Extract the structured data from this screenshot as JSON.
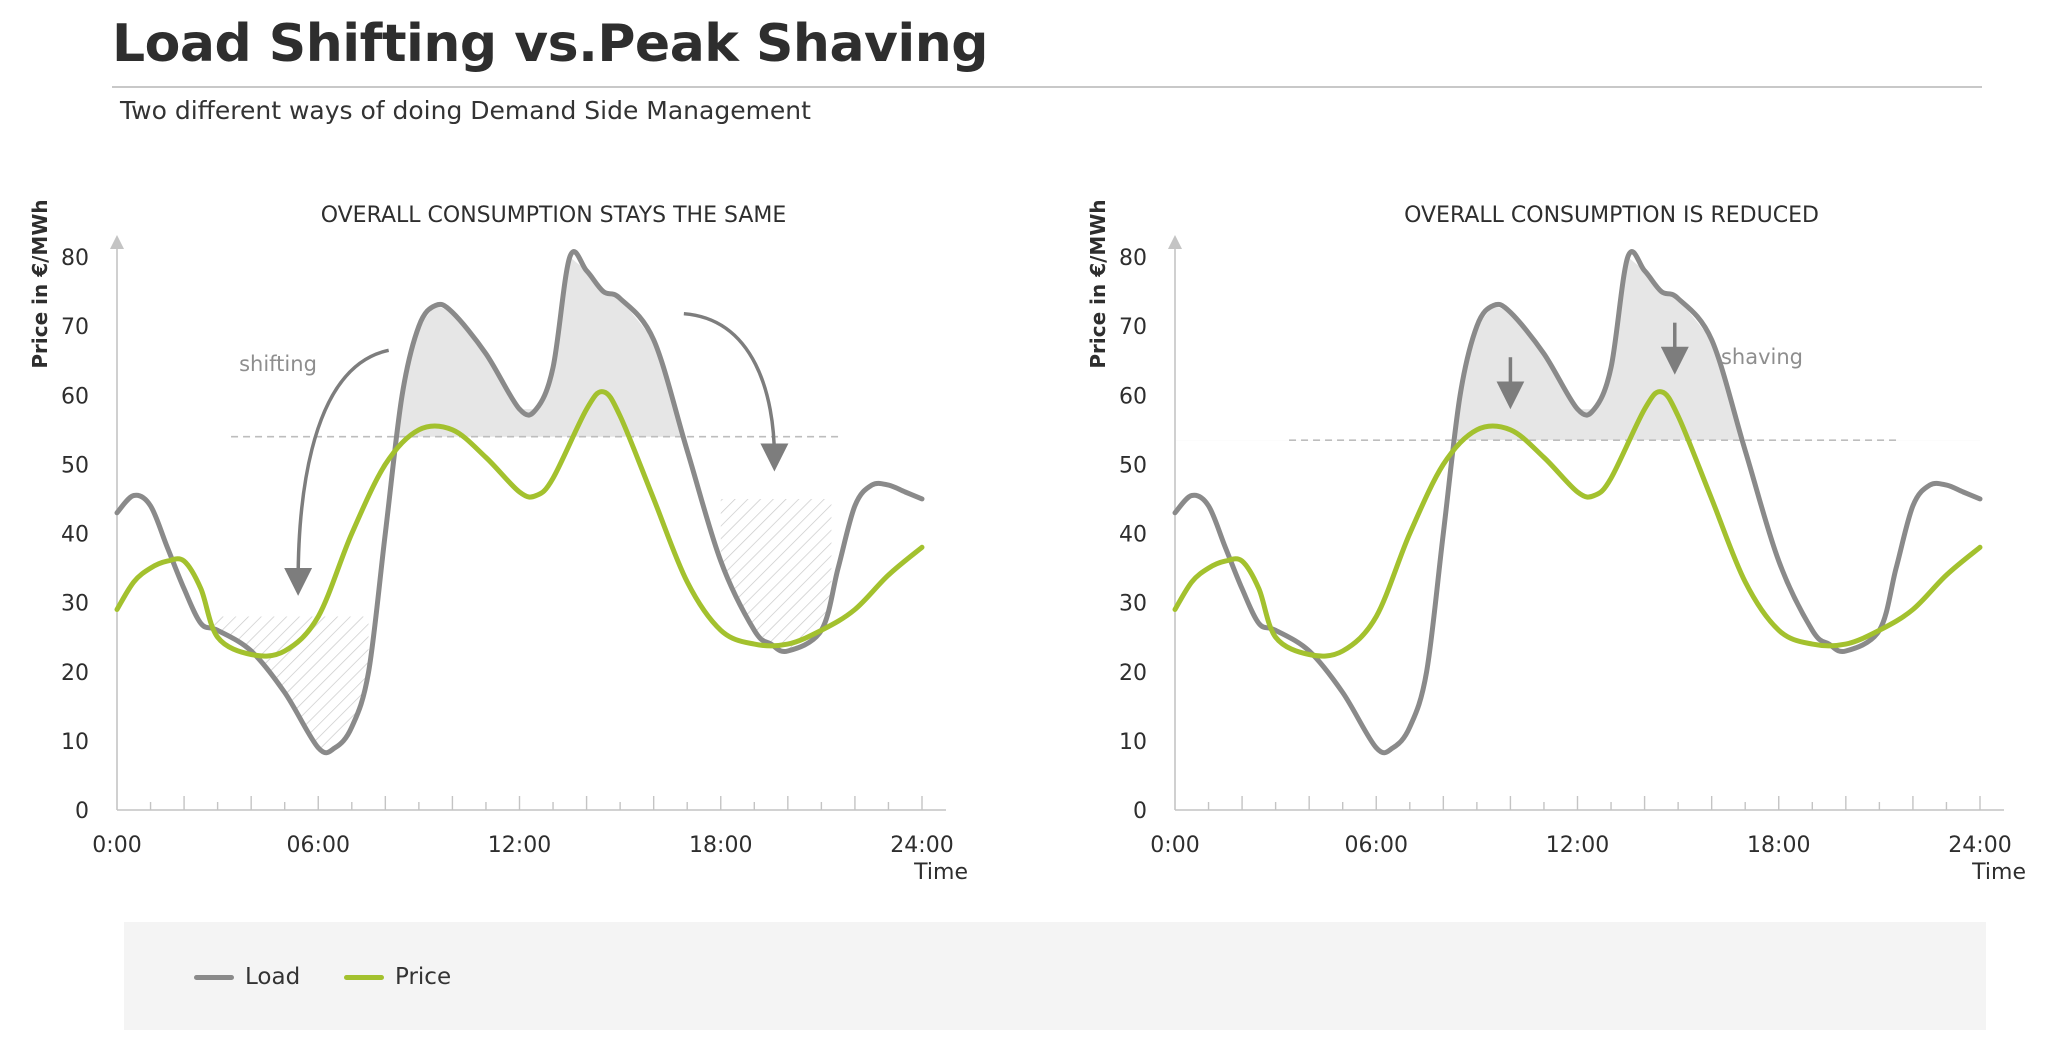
{
  "header": {
    "title": "Load Shifting vs.Peak Shaving",
    "subtitle": "Two different ways of doing Demand Side Management"
  },
  "colors": {
    "load": "#8a8a8a",
    "price": "#a3c12e",
    "shaded_area": "#e6e6e6",
    "hatch": "#c9c9c9",
    "reference_line": "#bdbdbd",
    "text": "#2e2e2e"
  },
  "legend": {
    "items": [
      {
        "label": "Load",
        "color": "#8a8a8a"
      },
      {
        "label": "Price",
        "color": "#a3c12e"
      }
    ]
  },
  "chart_data": [
    {
      "type": "line",
      "title": "OVERALL CONSUMPTION STAYS THE SAME",
      "xlabel": "Time",
      "ylabel": "Price in €/MWh",
      "x_tick_labels": [
        "0:00",
        "06:00",
        "12:00",
        "18:00",
        "24:00"
      ],
      "y_ticks": [
        0,
        10,
        20,
        30,
        40,
        50,
        60,
        70,
        80
      ],
      "xlim": [
        0,
        24
      ],
      "ylim": [
        0,
        80
      ],
      "grid": false,
      "reference_line": 54,
      "annotations": [
        {
          "text": "shifting",
          "x": 4.8,
          "y": 63.5
        }
      ],
      "series": [
        {
          "name": "Load",
          "x": [
            0,
            0.5,
            1,
            1.5,
            2,
            2.5,
            3,
            4,
            5,
            6,
            6.5,
            7,
            7.5,
            8,
            8.5,
            9,
            9.5,
            10,
            11,
            12,
            12.5,
            13,
            13.5,
            14,
            14.5,
            15,
            16,
            17,
            18,
            19,
            19.5,
            20,
            21,
            21.5,
            22,
            22.5,
            23,
            23.5,
            24
          ],
          "y": [
            43,
            45.5,
            44,
            38,
            32,
            27,
            26,
            23,
            17,
            9,
            9,
            12,
            20,
            40,
            60,
            70,
            73,
            72,
            66,
            58,
            58,
            64,
            80,
            78,
            75,
            74,
            68,
            52,
            36,
            26,
            24,
            23,
            26,
            35,
            44,
            47,
            47,
            46,
            45
          ]
        },
        {
          "name": "Price",
          "x": [
            0,
            0.5,
            1,
            1.5,
            2,
            2.5,
            3,
            4,
            5,
            6,
            7,
            8,
            9,
            10,
            11,
            12,
            12.5,
            13,
            14,
            14.5,
            15,
            16,
            17,
            18,
            19,
            20,
            21,
            22,
            23,
            24
          ],
          "y": [
            29,
            33,
            35,
            36,
            36,
            32,
            25,
            22.5,
            23,
            28,
            40,
            50,
            55,
            55,
            51,
            46,
            45.5,
            48,
            58,
            60.5,
            57,
            45,
            33,
            26,
            24,
            24,
            26,
            29,
            34,
            38
          ]
        }
      ],
      "filled_regions": [
        {
          "kind": "shaded",
          "note": "load above reference line"
        },
        {
          "kind": "hatched",
          "x_range": [
            2.8,
            7.5
          ],
          "level": 28
        },
        {
          "kind": "hatched",
          "x_range": [
            18,
            21.3
          ],
          "level": 45
        }
      ]
    },
    {
      "type": "line",
      "title": "OVERALL CONSUMPTION IS REDUCED",
      "xlabel": "Time",
      "ylabel": "Price in €/MWh",
      "x_tick_labels": [
        "0:00",
        "06:00",
        "12:00",
        "18:00",
        "24:00"
      ],
      "y_ticks": [
        0,
        10,
        20,
        30,
        40,
        50,
        60,
        70,
        80
      ],
      "xlim": [
        0,
        24
      ],
      "ylim": [
        0,
        80
      ],
      "grid": false,
      "reference_line": 53.5,
      "annotations": [
        {
          "text": "shaving",
          "x": 17.5,
          "y": 64.5
        }
      ],
      "series": [
        {
          "name": "Load",
          "x": [
            0,
            0.5,
            1,
            1.5,
            2,
            2.5,
            3,
            4,
            5,
            6,
            6.5,
            7,
            7.5,
            8,
            8.5,
            9,
            9.5,
            10,
            11,
            12,
            12.5,
            13,
            13.5,
            14,
            14.5,
            15,
            16,
            17,
            18,
            19,
            19.5,
            20,
            21,
            21.5,
            22,
            22.5,
            23,
            23.5,
            24
          ],
          "y": [
            43,
            45.5,
            44,
            38,
            32,
            27,
            26,
            23,
            17,
            9,
            9,
            12,
            20,
            40,
            60,
            70,
            73,
            72,
            66,
            58,
            58,
            64,
            80,
            78,
            75,
            74,
            68,
            52,
            36,
            26,
            24,
            23,
            26,
            35,
            44,
            47,
            47,
            46,
            45
          ]
        },
        {
          "name": "Price",
          "x": [
            0,
            0.5,
            1,
            1.5,
            2,
            2.5,
            3,
            4,
            5,
            6,
            7,
            8,
            9,
            10,
            11,
            12,
            12.5,
            13,
            14,
            14.5,
            15,
            16,
            17,
            18,
            19,
            20,
            21,
            22,
            23,
            24
          ],
          "y": [
            29,
            33,
            35,
            36,
            36,
            32,
            25,
            22.5,
            23,
            28,
            40,
            50,
            55,
            55,
            51,
            46,
            45.5,
            48,
            58,
            60.5,
            57,
            45,
            33,
            26,
            24,
            24,
            26,
            29,
            34,
            38
          ]
        }
      ],
      "filled_regions": [
        {
          "kind": "shaded",
          "note": "load above reference line"
        }
      ]
    }
  ]
}
